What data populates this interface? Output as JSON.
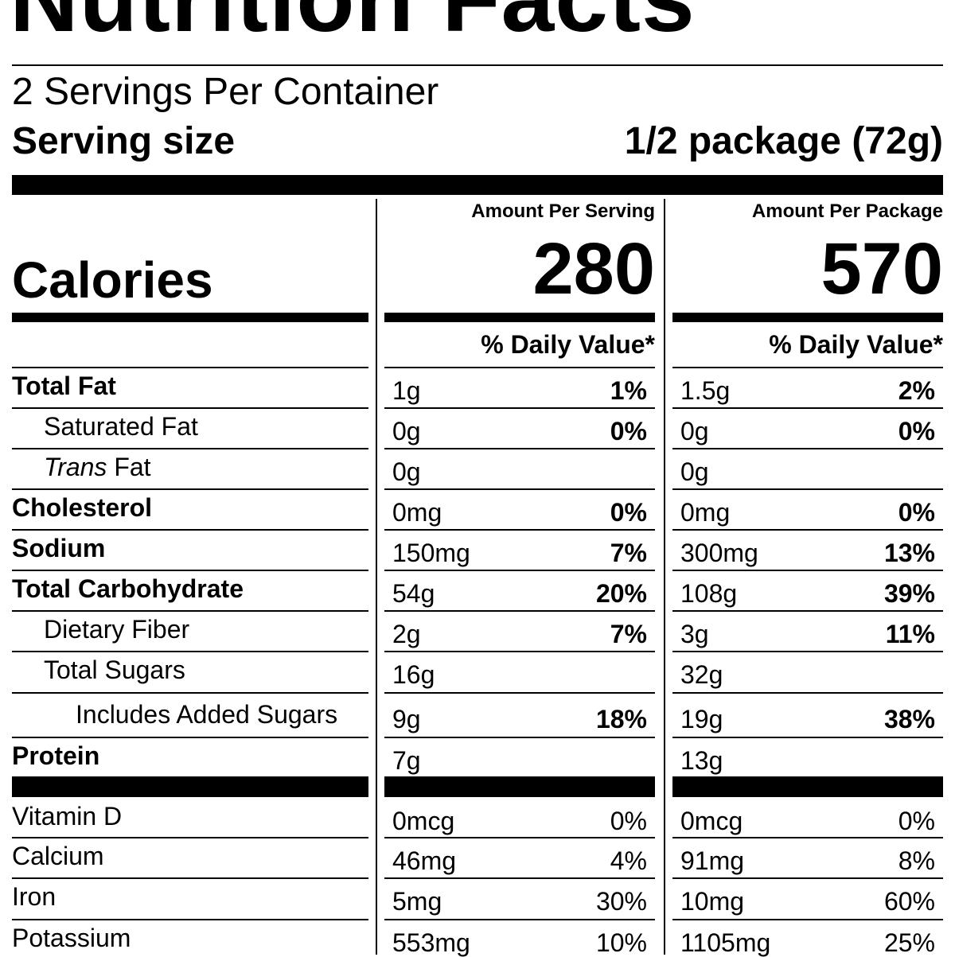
{
  "title": "Nutrition Facts",
  "servings": "2 Servings Per Container",
  "serving_size": {
    "label": "Serving size",
    "value": "1/2 package (72g)"
  },
  "columns": [
    "Amount Per Serving",
    "Amount Per Package"
  ],
  "calories": {
    "label": "Calories",
    "values": [
      280,
      570
    ]
  },
  "dv_header": "% Daily Value*",
  "nutrients": [
    {
      "name": "Total Fat",
      "serving": [
        "1g",
        "1%"
      ],
      "package": [
        "1.5g",
        "2%"
      ]
    },
    {
      "name": "Saturated Fat",
      "serving": [
        "0g",
        "0%"
      ],
      "package": [
        "0g",
        "0%"
      ]
    },
    {
      "name_italic": "Trans",
      "name": "Fat",
      "serving": [
        "0g",
        null
      ],
      "package": [
        "0g",
        null
      ]
    },
    {
      "name": "Cholesterol",
      "serving": [
        "0mg",
        "0%"
      ],
      "package": [
        "0mg",
        "0%"
      ]
    },
    {
      "name": "Sodium",
      "serving": [
        "150mg",
        "7%"
      ],
      "package": [
        "300mg",
        "13%"
      ]
    },
    {
      "name": "Total Carbohydrate",
      "serving": [
        "54g",
        "20%"
      ],
      "package": [
        "108g",
        "39%"
      ]
    },
    {
      "name": "Dietary Fiber",
      "serving": [
        "2g",
        "7%"
      ],
      "package": [
        "3g",
        "11%"
      ]
    },
    {
      "name": "Total Sugars",
      "serving": [
        "16g",
        null
      ],
      "package": [
        "32g",
        null
      ]
    },
    {
      "name": "Includes Added Sugars",
      "serving": [
        "9g",
        "18%"
      ],
      "package": [
        "19g",
        "38%"
      ]
    },
    {
      "name": "Protein",
      "serving": [
        "7g",
        null
      ],
      "package": [
        "13g",
        null
      ]
    }
  ],
  "vitamins": [
    {
      "name": "Vitamin D",
      "serving": [
        "0mcg",
        "0%"
      ],
      "package": [
        "0mcg",
        "0%"
      ]
    },
    {
      "name": "Calcium",
      "serving": [
        "46mg",
        "4%"
      ],
      "package": [
        "91mg",
        "8%"
      ]
    },
    {
      "name": "Iron",
      "serving": [
        "5mg",
        "30%"
      ],
      "package": [
        "10mg",
        "60%"
      ]
    },
    {
      "name": "Potassium",
      "serving": [
        "553mg",
        "10%"
      ],
      "package": [
        "1105mg",
        "25%"
      ]
    }
  ]
}
